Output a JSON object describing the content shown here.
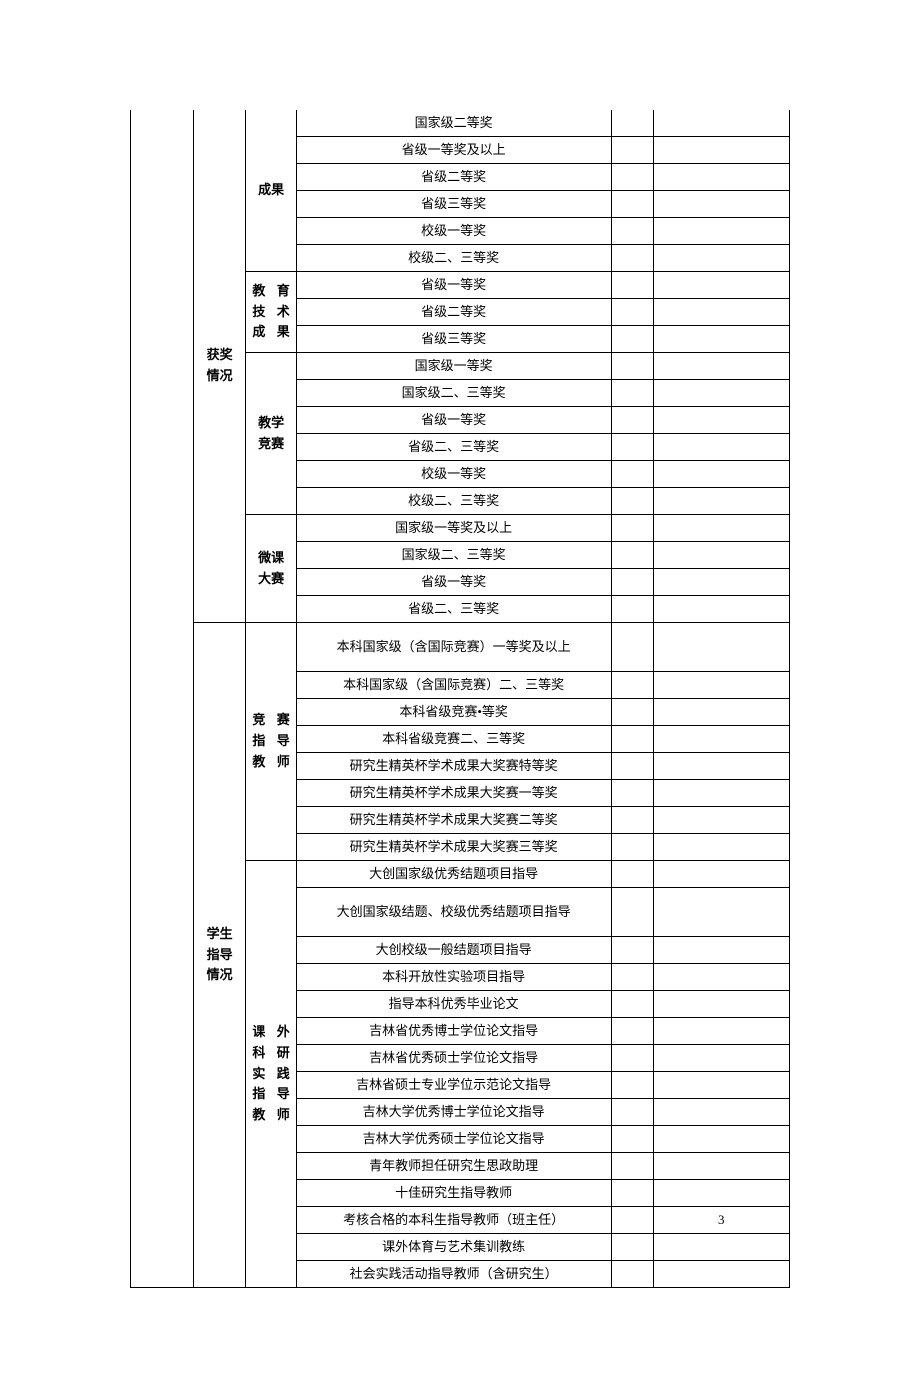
{
  "colors": {
    "border": "#000000",
    "background": "#ffffff",
    "text": "#000000"
  },
  "font": {
    "family": "SimSun",
    "size_pt": 10
  },
  "section1": {
    "group_label_b": "获奖\n情况",
    "subgroups": {
      "chengguo": {
        "label": "成果",
        "rows": [
          "国家级二等奖",
          "省级一等奖及以上",
          "省级二等奖",
          "省级三等奖",
          "校级一等奖",
          "校级二、三等奖"
        ]
      },
      "jiaoyu": {
        "label": "教育技术成果",
        "rows": [
          "省级一等奖",
          "省级二等奖",
          "省级三等奖"
        ]
      },
      "jingsa": {
        "label": "教学\n竞赛",
        "rows": [
          "国家级一等奖",
          "国家级二、三等奖",
          "省级一等奖",
          "省级二、三等奖",
          "校级一等奖",
          "校级二、三等奖"
        ]
      },
      "weike": {
        "label": "微课\n大赛",
        "rows": [
          "国家级一等奖及以上",
          "国家级二、三等奖",
          "省级一等奖",
          "省级二、三等奖"
        ]
      }
    }
  },
  "section2": {
    "group_label_b": "学生\n指导\n情况",
    "subgroups": {
      "jingsai_zhidao": {
        "label": "竞赛指导教师",
        "rows": [
          "本科国家级（含国际竞赛）一等奖及以上",
          "本科国家级（含国际竞赛）二、三等奖",
          "本科省级竞赛•等奖",
          "本科省级竞赛二、三等奖",
          "研究生精英杯学术成果大奖赛特等奖",
          "研究生精英杯学术成果大奖赛一等奖",
          "研究生精英杯学术成果大奖赛二等奖",
          "研究生精英杯学术成果大奖赛三等奖"
        ]
      },
      "kewai": {
        "label": "课外科研实践指导教师",
        "rows": [
          {
            "text": "大创国家级优秀结题项目指导",
            "value": ""
          },
          {
            "text": "大创国家级结题、校级优秀结题项目指导",
            "value": ""
          },
          {
            "text": "大创校级一般结题项目指导",
            "value": ""
          },
          {
            "text": "本科开放性实验项目指导",
            "value": ""
          },
          {
            "text": "指导本科优秀毕业论文",
            "value": ""
          },
          {
            "text": "吉林省优秀博士学位论文指导",
            "value": ""
          },
          {
            "text": "吉林省优秀硕士学位论文指导",
            "value": ""
          },
          {
            "text": "吉林省硕士专业学位示范论文指导",
            "value": ""
          },
          {
            "text": "吉林大学优秀博士学位论文指导",
            "value": ""
          },
          {
            "text": "吉林大学优秀硕士学位论文指导",
            "value": ""
          },
          {
            "text": "青年教师担任研究生思政助理",
            "value": ""
          },
          {
            "text": "十佳研究生指导教师",
            "value": ""
          },
          {
            "text": "考核合格的本科生指导教师（班主任）",
            "value": "3"
          },
          {
            "text": "课外体育与艺术集训教练",
            "value": ""
          },
          {
            "text": "社会实践活动指导教师（含研究生）",
            "value": ""
          }
        ]
      }
    }
  }
}
